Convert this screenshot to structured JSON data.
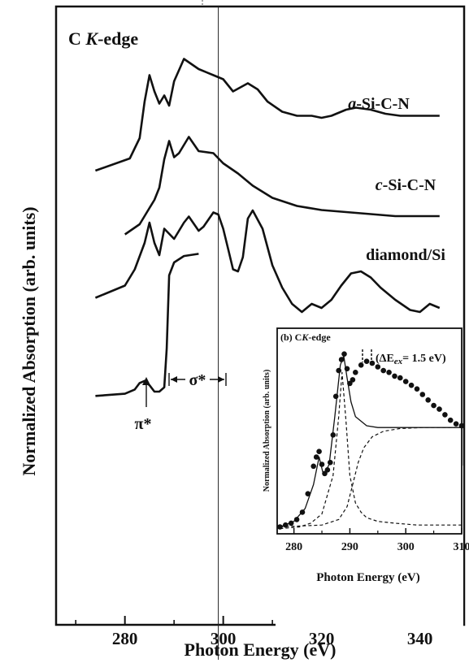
{
  "chart_data": [
    {
      "type": "line",
      "title": "C K-edge",
      "title_parts": {
        "element": "C",
        "edge": "K",
        "suffix": "-edge"
      },
      "xlabel": "Photon Energy (eV)",
      "ylabel": "Normalized Absorption (arb. units)",
      "xlim": [
        266,
        349
      ],
      "x_ticks": [
        280,
        300,
        320,
        340
      ],
      "x_tick_labels": [
        "280",
        "300",
        "320",
        "340"
      ],
      "grid": false,
      "legend": "inline labels on right",
      "series": [
        {
          "name": "a-Si-C-N",
          "name_parts": {
            "prefix": "a",
            "rest": "-Si-C-N"
          },
          "x": [
            274,
            281,
            283,
            284,
            285,
            286,
            287,
            288,
            289,
            290,
            292,
            295,
            298,
            300,
            302,
            305,
            307,
            309,
            312,
            315,
            318,
            320,
            322,
            325,
            327,
            330,
            333,
            336,
            340,
            344
          ],
          "y": [
            0.24,
            0.3,
            0.4,
            0.58,
            0.71,
            0.63,
            0.57,
            0.61,
            0.56,
            0.68,
            0.79,
            0.74,
            0.71,
            0.69,
            0.63,
            0.67,
            0.64,
            0.58,
            0.53,
            0.51,
            0.51,
            0.5,
            0.51,
            0.54,
            0.55,
            0.54,
            0.52,
            0.51,
            0.51,
            0.51
          ]
        },
        {
          "name": "c-Si-C-N",
          "name_parts": {
            "prefix": "c",
            "rest": "-Si-C-N"
          },
          "x": [
            280,
            283,
            285,
            286,
            287,
            288,
            289,
            290,
            291,
            293,
            295,
            298,
            300,
            303,
            306,
            310,
            315,
            320,
            325,
            330,
            335,
            340,
            344
          ],
          "y": [
            0.15,
            0.2,
            0.28,
            0.32,
            0.38,
            0.52,
            0.61,
            0.53,
            0.55,
            0.63,
            0.56,
            0.55,
            0.5,
            0.45,
            0.39,
            0.33,
            0.29,
            0.27,
            0.26,
            0.25,
            0.24,
            0.24,
            0.24
          ]
        },
        {
          "name": "diamond/Si",
          "x": [
            274,
            280,
            282,
            284,
            285,
            286,
            287,
            288,
            290,
            292,
            293,
            295,
            296,
            298,
            299,
            300,
            301,
            302,
            303,
            304,
            305,
            306,
            308,
            310,
            312,
            314,
            316,
            318,
            320,
            322,
            324,
            326,
            328,
            330,
            332,
            335,
            338,
            340,
            342,
            344
          ],
          "y": [
            0.03,
            0.09,
            0.17,
            0.3,
            0.4,
            0.3,
            0.24,
            0.37,
            0.32,
            0.4,
            0.43,
            0.36,
            0.38,
            0.45,
            0.44,
            0.37,
            0.27,
            0.17,
            0.16,
            0.23,
            0.42,
            0.46,
            0.37,
            0.19,
            0.08,
            0.0,
            -0.04,
            0.0,
            -0.02,
            0.02,
            0.09,
            0.15,
            0.16,
            0.13,
            0.08,
            0.02,
            -0.03,
            -0.04,
            0.0,
            -0.02
          ]
        },
        {
          "name": "",
          "x": [
            274,
            280,
            282,
            283,
            284,
            285,
            286,
            287,
            288,
            288.5,
            289,
            290,
            292,
            295
          ],
          "y": [
            -0.42,
            -0.41,
            -0.39,
            -0.36,
            -0.35,
            -0.37,
            -0.4,
            -0.4,
            -0.38,
            -0.2,
            0.14,
            0.2,
            0.23,
            0.24
          ]
        }
      ],
      "annotations": [
        {
          "text": "π*",
          "x": 284,
          "type": "arrow-up"
        },
        {
          "text": "σ*",
          "x_range": [
            290,
            303
          ],
          "type": "span-arrow"
        }
      ],
      "vertical_lines": [
        299
      ]
    },
    {
      "type": "line",
      "panel_label": "(b)",
      "title": "C K-edge",
      "title_parts": {
        "element": "C",
        "edge": "K",
        "suffix": "-edge"
      },
      "annotation": "(ΔEex= 1.5 eV)",
      "annotation_parts": {
        "prefix": "(ΔE",
        "subscript": "ex",
        "suffix": "= 1.5 eV)"
      },
      "xlabel": "Photon Energy (eV)",
      "ylabel": "Normalized Absorption (arb. units)",
      "xlim": [
        277,
        310
      ],
      "ylim": [
        0,
        1.1
      ],
      "x_ticks": [
        280,
        290,
        300,
        310
      ],
      "x_tick_labels": [
        "280",
        "290",
        "300",
        "310"
      ],
      "grid": false,
      "series": [
        {
          "name": "",
          "style": "markers",
          "x": [
            277.5,
            278.5,
            279.5,
            280.5,
            281.5,
            282.5,
            283.5,
            284.0,
            284.5,
            285.0,
            285.5,
            286.0,
            286.5,
            287.0,
            287.5,
            288.0,
            288.5,
            289.0,
            289.5,
            290.0,
            290.5,
            291.0,
            292.0,
            293.0,
            294.0,
            295.0,
            296.0,
            297.0,
            298.0,
            299.0,
            300.0,
            301.0,
            302.0,
            303.0,
            304.0,
            305.0,
            306.0,
            307.0,
            308.0,
            309.0,
            310.0
          ],
          "y": [
            0.02,
            0.03,
            0.04,
            0.06,
            0.1,
            0.2,
            0.35,
            0.4,
            0.43,
            0.36,
            0.31,
            0.33,
            0.37,
            0.52,
            0.73,
            0.87,
            0.93,
            0.96,
            0.88,
            0.8,
            0.82,
            0.86,
            0.9,
            0.92,
            0.91,
            0.89,
            0.87,
            0.86,
            0.84,
            0.83,
            0.81,
            0.79,
            0.77,
            0.74,
            0.71,
            0.68,
            0.66,
            0.63,
            0.6,
            0.58,
            0.57
          ]
        },
        {
          "name": "",
          "style": "solid",
          "x": [
            277.5,
            280,
            282,
            283.5,
            284.5,
            285.3,
            286.3,
            287.3,
            288.3,
            288.9,
            289.5,
            290.2,
            291,
            293,
            295,
            298,
            301,
            304,
            307,
            310
          ],
          "y": [
            0.02,
            0.05,
            0.12,
            0.25,
            0.4,
            0.3,
            0.36,
            0.62,
            0.9,
            0.95,
            0.83,
            0.7,
            0.62,
            0.57,
            0.56,
            0.56,
            0.56,
            0.56,
            0.56,
            0.56
          ]
        },
        {
          "name": "",
          "style": "dashed",
          "x": [
            277.5,
            281,
            283,
            285,
            287,
            288,
            288.6,
            289.3,
            290,
            291,
            292,
            293,
            295,
            298,
            302,
            306,
            310
          ],
          "y": [
            0.01,
            0.02,
            0.04,
            0.09,
            0.3,
            0.62,
            0.86,
            0.6,
            0.3,
            0.15,
            0.1,
            0.07,
            0.05,
            0.04,
            0.03,
            0.03,
            0.03
          ]
        },
        {
          "name": "",
          "style": "dashed",
          "x": [
            277.5,
            285,
            288,
            289.5,
            290.5,
            291.5,
            292.5,
            294,
            296,
            299,
            303,
            307,
            310
          ],
          "y": [
            0.02,
            0.03,
            0.06,
            0.13,
            0.25,
            0.37,
            0.45,
            0.51,
            0.54,
            0.555,
            0.56,
            0.56,
            0.56
          ]
        }
      ]
    }
  ]
}
